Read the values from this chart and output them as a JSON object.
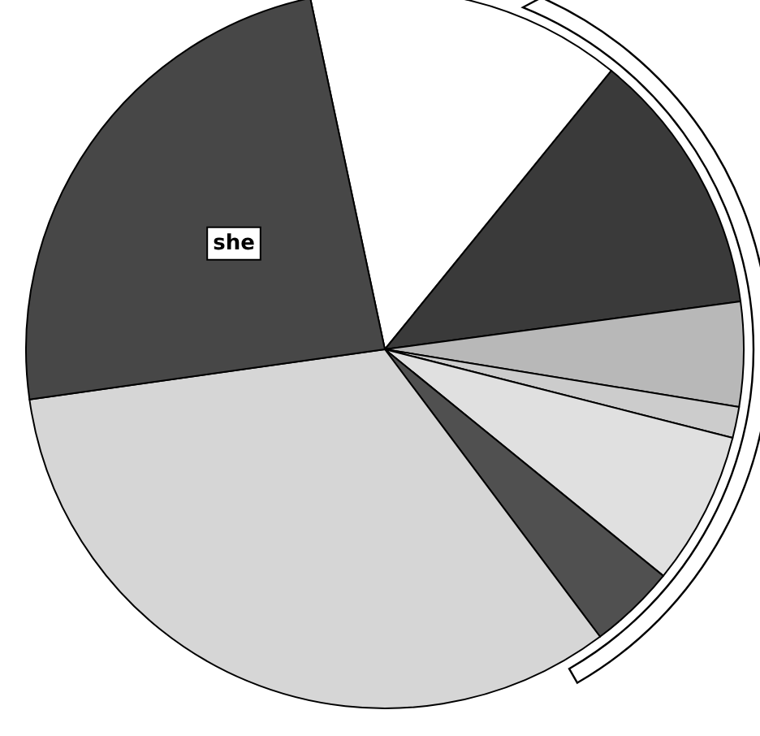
{
  "chart_data": {
    "type": "pie",
    "categories": [
      null,
      null,
      null,
      null,
      null,
      null,
      null,
      "she"
    ],
    "values": [
      14.2,
      12.0,
      4.7,
      1.4,
      6.9,
      3.9,
      33.0,
      23.9
    ],
    "colors": [
      "#ffffff",
      "#3a3a3a",
      "#b8b8b8",
      "#cccccc",
      "#e0e0e0",
      "#505050",
      "#d6d6d6",
      "#474747"
    ]
  }
}
